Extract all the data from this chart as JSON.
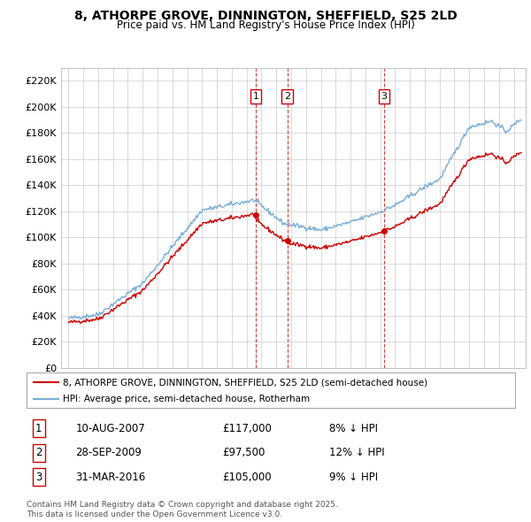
{
  "title": "8, ATHORPE GROVE, DINNINGTON, SHEFFIELD, S25 2LD",
  "subtitle": "Price paid vs. HM Land Registry's House Price Index (HPI)",
  "legend_line1": "8, ATHORPE GROVE, DINNINGTON, SHEFFIELD, S25 2LD (semi-detached house)",
  "legend_line2": "HPI: Average price, semi-detached house, Rotherham",
  "transactions": [
    {
      "label": "1",
      "date": "10-AUG-2007",
      "price": 117000,
      "note": "8% ↓ HPI",
      "x_year": 2007.61
    },
    {
      "label": "2",
      "date": "28-SEP-2009",
      "price": 97500,
      "note": "12% ↓ HPI",
      "x_year": 2009.74
    },
    {
      "label": "3",
      "date": "31-MAR-2016",
      "price": 105000,
      "note": "9% ↓ HPI",
      "x_year": 2016.25
    }
  ],
  "footnote1": "Contains HM Land Registry data © Crown copyright and database right 2025.",
  "footnote2": "This data is licensed under the Open Government Licence v3.0.",
  "hpi_color": "#7aaed6",
  "price_color": "#cc0000",
  "marker_color": "#cc0000",
  "background_color": "#ffffff",
  "grid_color": "#cccccc",
  "ylim": [
    0,
    230000
  ],
  "xlim_start": 1994.5,
  "xlim_end": 2025.8
}
